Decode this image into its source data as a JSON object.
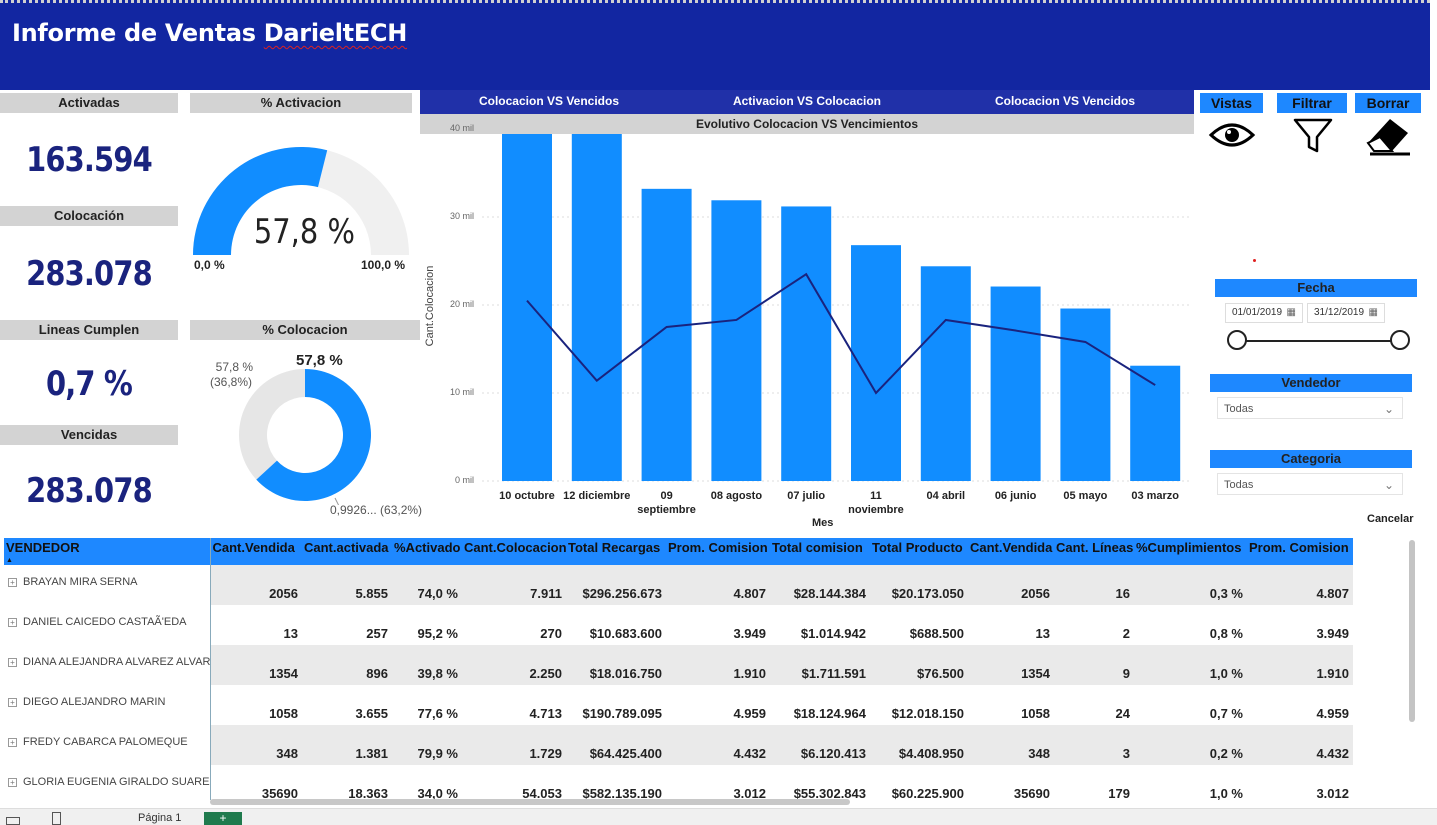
{
  "header": {
    "title_prefix": "Informe de Ventas ",
    "title_brand": "DarieltECH"
  },
  "kpis": {
    "activadas": {
      "label": "Activadas",
      "value": "163.594"
    },
    "colocacion": {
      "label": "Colocación",
      "value": "283.078"
    },
    "lineas": {
      "label": "Lineas Cumplen",
      "value": "0,7 %"
    },
    "vencidas": {
      "label": "Vencidas",
      "value": "283.078"
    }
  },
  "gauge": {
    "label": "% Activacion",
    "value": "57,8 %",
    "min": "0,0 %",
    "max": "100,0 %",
    "fraction": 0.578
  },
  "donut": {
    "label": "% Colocacion",
    "top_value": "57,8 %",
    "left_label_1": "57,8 %",
    "left_label_2": "(36,8%)",
    "right_label": "0,9926... (63,2%)",
    "fraction": 0.632
  },
  "chart_tabs": [
    "Colocacion VS Vencidos",
    "Activacion VS Colocacion",
    "Colocacion VS Vencidos"
  ],
  "chart_data": {
    "type": "bar",
    "title": "Evolutivo Colocacion VS Vencimientos",
    "xlabel": "Mes",
    "ylabel": "Cant.Colocacion",
    "ylim": [
      0,
      40000
    ],
    "yticks": [
      "0 mil",
      "10 mil",
      "20 mil",
      "30 mil",
      "40 mil"
    ],
    "categories": [
      "10 octubre",
      "12 diciembre",
      "09 septiembre",
      "08 agosto",
      "07 julio",
      "11 noviembre",
      "04 abril",
      "06 junio",
      "05 mayo",
      "03 marzo"
    ],
    "series": [
      {
        "values": [
          40700,
          39700,
          33200,
          31900,
          31200,
          26800,
          24400,
          22100,
          19600,
          13100
        ]
      },
      {
        "values": [
          20500,
          11400,
          17500,
          18300,
          23500,
          10000,
          18300,
          17100,
          15800,
          10900
        ]
      }
    ],
    "colors": {
      "bar": "#118dff",
      "line": "#1a237e"
    }
  },
  "buttons": {
    "vistas": {
      "label": "Vistas",
      "icon": "eye-icon"
    },
    "filtrar": {
      "label": "Filtrar",
      "icon": "funnel-icon"
    },
    "borrar": {
      "label": "Borrar",
      "icon": "eraser-icon"
    }
  },
  "slicers": {
    "fecha": {
      "label": "Fecha",
      "start": "01/01/2019",
      "end": "31/12/2019"
    },
    "vendedor": {
      "label": "Vendedor",
      "value": "Todas"
    },
    "categoria": {
      "label": "Categoria",
      "value": "Todas"
    },
    "cancel": "Cancelar"
  },
  "table": {
    "columns": [
      "VENDEDOR",
      "Cant.Vendida",
      "Cant.activada",
      "%Activado",
      "Cant.Colocacion",
      "Total Recargas",
      "Prom. Comision",
      "Total comision",
      "Total Producto",
      "Cant.Vendida",
      "Cant. Líneas",
      "%Cumplimientos",
      "Prom. Comision"
    ],
    "rows": [
      [
        "BRAYAN MIRA SERNA",
        "2056",
        "5.855",
        "74,0 %",
        "7.911",
        "$296.256.673",
        "4.807",
        "$28.144.384",
        "$20.173.050",
        "2056",
        "16",
        "0,3 %",
        "4.807"
      ],
      [
        "DANIEL CAICEDO CASTAÃ'EDA",
        "13",
        "257",
        "95,2 %",
        "270",
        "$10.683.600",
        "3.949",
        "$1.014.942",
        "$688.500",
        "13",
        "2",
        "0,8 %",
        "3.949"
      ],
      [
        "DIANA ALEJANDRA ALVAREZ ALVAREZ",
        "1354",
        "896",
        "39,8 %",
        "2.250",
        "$18.016.750",
        "1.910",
        "$1.711.591",
        "$76.500",
        "1354",
        "9",
        "1,0 %",
        "1.910"
      ],
      [
        "DIEGO ALEJANDRO MARIN",
        "1058",
        "3.655",
        "77,6 %",
        "4.713",
        "$190.789.095",
        "4.959",
        "$18.124.964",
        "$12.018.150",
        "1058",
        "24",
        "0,7 %",
        "4.959"
      ],
      [
        "FREDY CABARCA PALOMEQUE",
        "348",
        "1.381",
        "79,9 %",
        "1.729",
        "$64.425.400",
        "4.432",
        "$6.120.413",
        "$4.408.950",
        "348",
        "3",
        "0,2 %",
        "4.432"
      ],
      [
        "GLORIA EUGENIA GIRALDO SUAREZ",
        "35690",
        "18.363",
        "34,0 %",
        "54.053",
        "$582.135.190",
        "3.012",
        "$55.302.843",
        "$60.225.900",
        "35690",
        "179",
        "1,0 %",
        "3.012"
      ]
    ]
  },
  "footer": {
    "page_tab": "Página 1",
    "add_tab": "+"
  }
}
